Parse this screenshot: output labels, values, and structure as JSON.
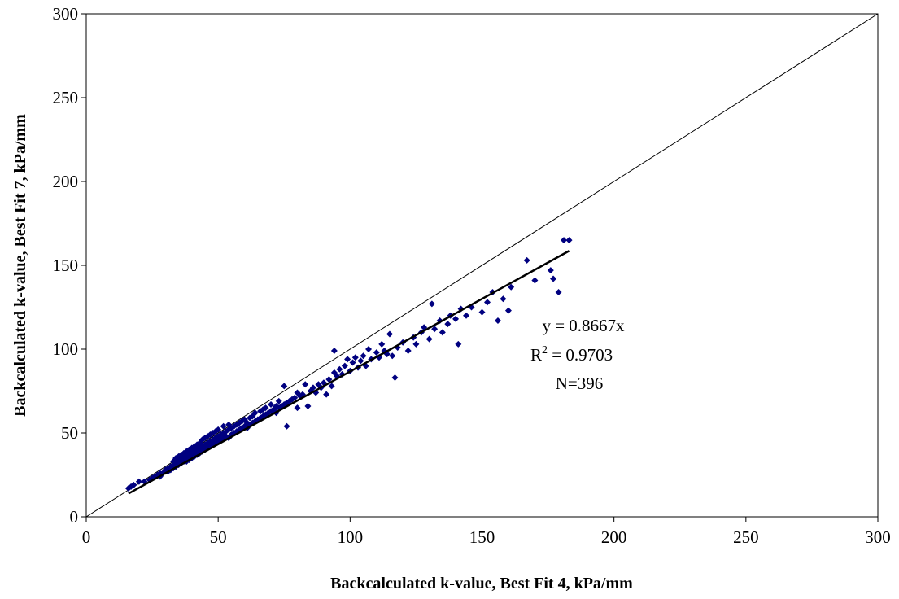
{
  "chart_data": {
    "type": "scatter",
    "xlabel": "Backcalculated k-value, Best Fit 4, kPa/mm",
    "ylabel": "Backcalculated k-value, Best Fit 7, kPa/mm",
    "xlim": [
      0,
      300
    ],
    "ylim": [
      0,
      300
    ],
    "x_ticks": [
      "0",
      "50",
      "100",
      "150",
      "200",
      "250",
      "300"
    ],
    "y_ticks": [
      "0",
      "50",
      "100",
      "150",
      "200",
      "250",
      "300"
    ],
    "grid": false,
    "marker_color": "#000080",
    "series": [
      {
        "marker": "diamond",
        "points": [
          [
            16,
            17
          ],
          [
            17,
            18
          ],
          [
            18,
            19
          ],
          [
            20,
            21
          ],
          [
            22,
            21
          ],
          [
            24,
            22
          ],
          [
            25,
            23
          ],
          [
            26,
            24
          ],
          [
            27,
            25
          ],
          [
            28,
            24
          ],
          [
            28,
            26
          ],
          [
            29,
            26
          ],
          [
            30,
            27
          ],
          [
            30,
            28
          ],
          [
            31,
            27
          ],
          [
            31,
            29
          ],
          [
            32,
            28
          ],
          [
            32,
            30
          ],
          [
            33,
            29
          ],
          [
            33,
            31
          ],
          [
            33,
            33
          ],
          [
            34,
            30
          ],
          [
            34,
            32
          ],
          [
            34,
            35
          ],
          [
            35,
            31
          ],
          [
            35,
            33
          ],
          [
            35,
            36
          ],
          [
            36,
            32
          ],
          [
            36,
            34
          ],
          [
            36,
            37
          ],
          [
            37,
            33
          ],
          [
            37,
            35
          ],
          [
            37,
            38
          ],
          [
            38,
            33
          ],
          [
            38,
            36
          ],
          [
            38,
            39
          ],
          [
            39,
            34
          ],
          [
            39,
            37
          ],
          [
            39,
            40
          ],
          [
            40,
            35
          ],
          [
            40,
            38
          ],
          [
            40,
            41
          ],
          [
            41,
            36
          ],
          [
            41,
            39
          ],
          [
            41,
            42
          ],
          [
            42,
            37
          ],
          [
            42,
            40
          ],
          [
            42,
            43
          ],
          [
            43,
            38
          ],
          [
            43,
            41
          ],
          [
            43,
            44
          ],
          [
            44,
            39
          ],
          [
            44,
            42
          ],
          [
            44,
            46
          ],
          [
            45,
            40
          ],
          [
            45,
            43
          ],
          [
            45,
            47
          ],
          [
            46,
            41
          ],
          [
            46,
            44
          ],
          [
            46,
            48
          ],
          [
            47,
            42
          ],
          [
            47,
            45
          ],
          [
            47,
            49
          ],
          [
            48,
            43
          ],
          [
            48,
            46
          ],
          [
            48,
            50
          ],
          [
            49,
            44
          ],
          [
            49,
            47
          ],
          [
            49,
            51
          ],
          [
            50,
            45
          ],
          [
            50,
            48
          ],
          [
            50,
            52
          ],
          [
            51,
            46
          ],
          [
            51,
            49
          ],
          [
            52,
            47
          ],
          [
            52,
            50
          ],
          [
            52,
            54
          ],
          [
            53,
            48
          ],
          [
            53,
            51
          ],
          [
            54,
            47
          ],
          [
            54,
            52
          ],
          [
            54,
            55
          ],
          [
            55,
            49
          ],
          [
            55,
            53
          ],
          [
            56,
            50
          ],
          [
            56,
            54
          ],
          [
            57,
            51
          ],
          [
            57,
            55
          ],
          [
            58,
            52
          ],
          [
            58,
            56
          ],
          [
            59,
            53
          ],
          [
            59,
            57
          ],
          [
            60,
            54
          ],
          [
            60,
            58
          ],
          [
            61,
            53
          ],
          [
            61,
            56
          ],
          [
            62,
            55
          ],
          [
            62,
            59
          ],
          [
            63,
            56
          ],
          [
            63,
            60
          ],
          [
            64,
            57
          ],
          [
            64,
            62
          ],
          [
            65,
            58
          ],
          [
            66,
            59
          ],
          [
            66,
            63
          ],
          [
            67,
            60
          ],
          [
            67,
            64
          ],
          [
            68,
            61
          ],
          [
            68,
            65
          ],
          [
            69,
            62
          ],
          [
            70,
            63
          ],
          [
            70,
            67
          ],
          [
            71,
            64
          ],
          [
            72,
            62
          ],
          [
            72,
            66
          ],
          [
            73,
            65
          ],
          [
            73,
            69
          ],
          [
            74,
            66
          ],
          [
            75,
            67
          ],
          [
            75,
            78
          ],
          [
            76,
            54
          ],
          [
            76,
            68
          ],
          [
            77,
            69
          ],
          [
            78,
            70
          ],
          [
            79,
            71
          ],
          [
            80,
            65
          ],
          [
            80,
            74
          ],
          [
            81,
            72
          ],
          [
            82,
            73
          ],
          [
            83,
            79
          ],
          [
            84,
            66
          ],
          [
            85,
            75
          ],
          [
            86,
            77
          ],
          [
            87,
            74
          ],
          [
            88,
            79
          ],
          [
            89,
            77
          ],
          [
            90,
            80
          ],
          [
            91,
            73
          ],
          [
            92,
            82
          ],
          [
            93,
            78
          ],
          [
            94,
            86
          ],
          [
            94,
            99
          ],
          [
            95,
            84
          ],
          [
            96,
            88
          ],
          [
            97,
            85
          ],
          [
            98,
            90
          ],
          [
            99,
            94
          ],
          [
            100,
            87
          ],
          [
            101,
            92
          ],
          [
            102,
            95
          ],
          [
            103,
            89
          ],
          [
            104,
            93
          ],
          [
            105,
            96
          ],
          [
            106,
            90
          ],
          [
            107,
            100
          ],
          [
            108,
            94
          ],
          [
            110,
            98
          ],
          [
            111,
            95
          ],
          [
            112,
            103
          ],
          [
            113,
            99
          ],
          [
            114,
            97
          ],
          [
            115,
            109
          ],
          [
            116,
            96
          ],
          [
            117,
            83
          ],
          [
            118,
            101
          ],
          [
            120,
            104
          ],
          [
            122,
            99
          ],
          [
            124,
            107
          ],
          [
            125,
            103
          ],
          [
            127,
            110
          ],
          [
            128,
            113
          ],
          [
            130,
            106
          ],
          [
            131,
            127
          ],
          [
            132,
            112
          ],
          [
            134,
            117
          ],
          [
            135,
            110
          ],
          [
            137,
            115
          ],
          [
            138,
            120
          ],
          [
            140,
            118
          ],
          [
            141,
            103
          ],
          [
            142,
            124
          ],
          [
            144,
            120
          ],
          [
            146,
            125
          ],
          [
            150,
            122
          ],
          [
            152,
            128
          ],
          [
            154,
            134
          ],
          [
            156,
            117
          ],
          [
            158,
            130
          ],
          [
            160,
            123
          ],
          [
            161,
            137
          ],
          [
            167,
            153
          ],
          [
            170,
            141
          ],
          [
            176,
            147
          ],
          [
            177,
            142
          ],
          [
            179,
            134
          ],
          [
            181,
            165
          ],
          [
            183,
            165
          ]
        ]
      }
    ],
    "trendline": {
      "slope": 0.8667,
      "x_range": [
        16,
        183
      ]
    },
    "reference_line": {
      "label": "",
      "from": [
        0,
        0
      ],
      "to": [
        300,
        300
      ]
    },
    "annotations": {
      "equation": "y = 0.8667x",
      "r2_prefix": "R",
      "r2_sup": "2",
      "r2_value": " = 0.9703",
      "n": "N=396"
    }
  }
}
